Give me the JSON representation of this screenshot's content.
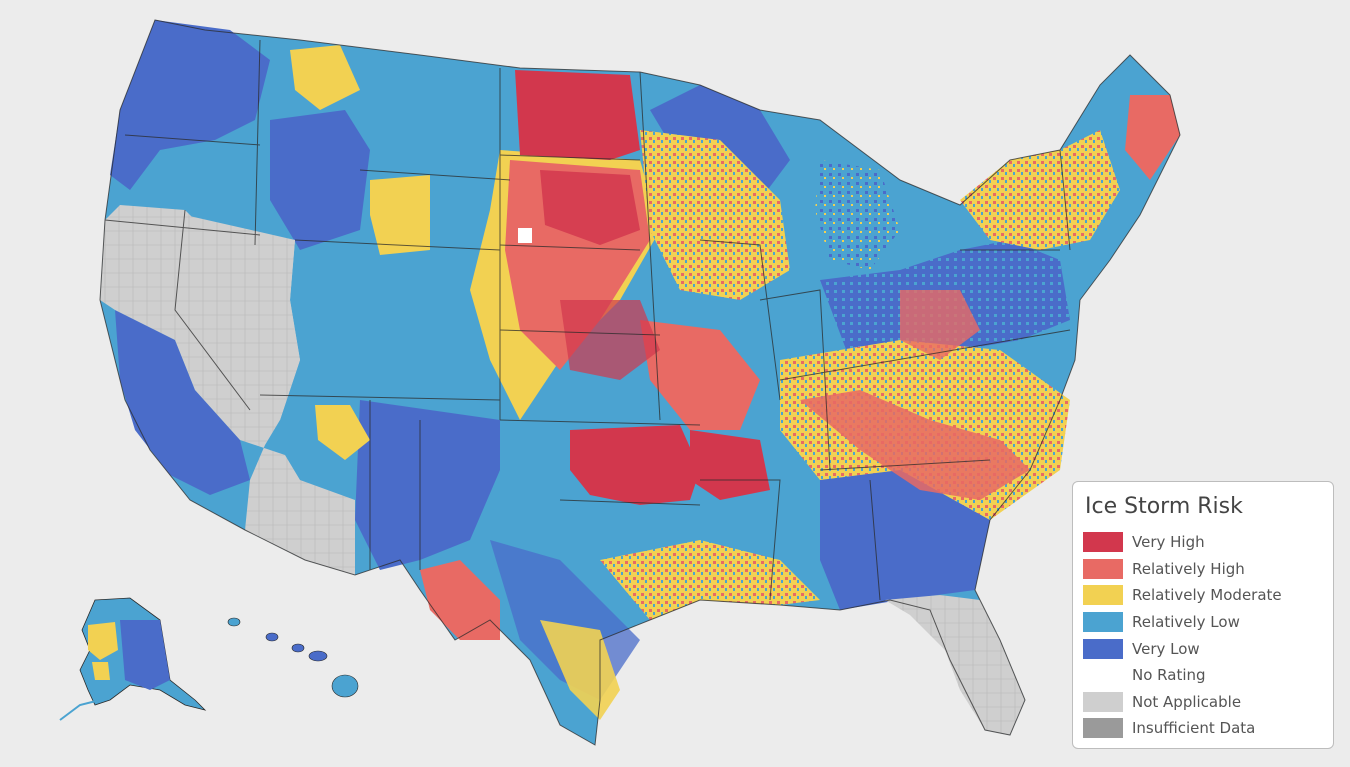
{
  "legend": {
    "title": "Ice Storm Risk",
    "items": [
      {
        "label": "Very High",
        "color": "#d2374d"
      },
      {
        "label": "Relatively High",
        "color": "#e86a64"
      },
      {
        "label": "Relatively Moderate",
        "color": "#f2d152"
      },
      {
        "label": "Relatively Low",
        "color": "#4ba3d1"
      },
      {
        "label": "Very Low",
        "color": "#4a6cc9"
      },
      {
        "label": "No Rating",
        "color": "#ffffff"
      },
      {
        "label": "Not Applicable",
        "color": "#cfcfcf"
      },
      {
        "label": "Insufficient Data",
        "color": "#9a9a9a"
      }
    ]
  },
  "map": {
    "background": "#ececec",
    "border_color": "#2a2a2a"
  }
}
